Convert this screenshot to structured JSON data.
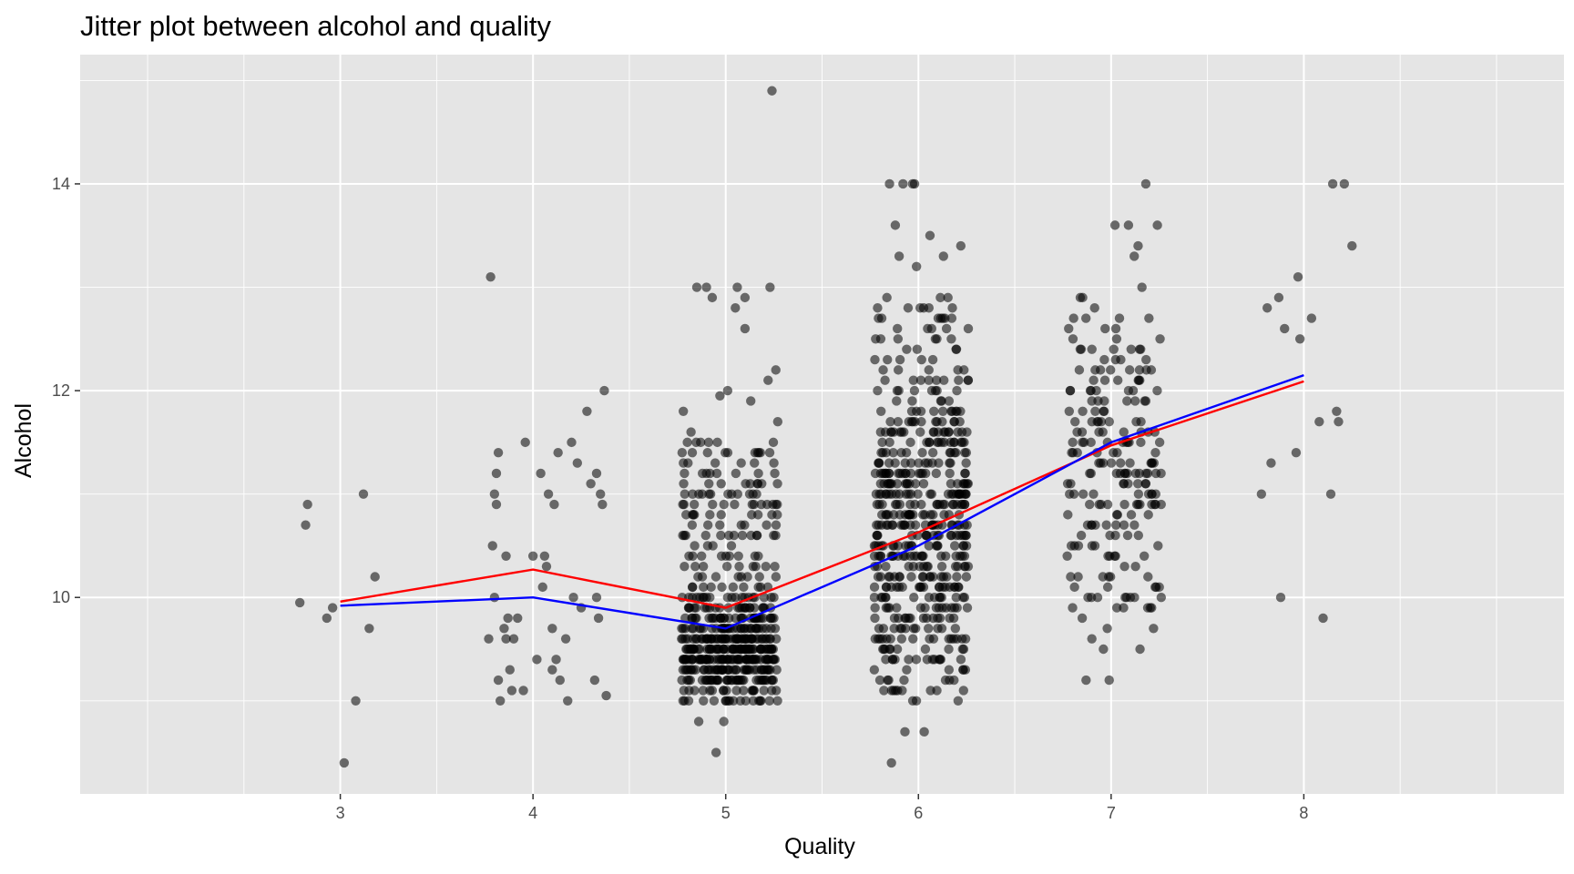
{
  "chart_data": {
    "type": "scatter",
    "title": "Jitter plot between alcohol and quality",
    "xlabel": "Quality",
    "ylabel": "Alcohol",
    "xlim": [
      1.65,
      9.35
    ],
    "ylim": [
      8.1,
      15.25
    ],
    "x_ticks": [
      3,
      4,
      5,
      6,
      7,
      8
    ],
    "y_ticks": [
      10,
      12,
      14
    ],
    "grid": true,
    "legend": "none",
    "point_color": "#000000",
    "point_opacity": 0.55,
    "panel_background": "#e5e5e5",
    "grid_color": "#ffffff",
    "series": [
      {
        "type": "scatter",
        "points": [
          [
            2.79,
            9.95
          ],
          [
            2.82,
            10.7
          ],
          [
            2.83,
            10.9
          ],
          [
            2.93,
            9.8
          ],
          [
            2.96,
            9.9
          ],
          [
            3.02,
            8.4
          ],
          [
            3.08,
            9.0
          ],
          [
            3.12,
            11.0
          ],
          [
            3.15,
            9.7
          ],
          [
            3.18,
            10.2
          ],
          [
            3.77,
            9.6
          ],
          [
            3.78,
            13.1
          ],
          [
            3.79,
            10.5
          ],
          [
            3.8,
            11.0
          ],
          [
            3.8,
            10.0
          ],
          [
            3.81,
            10.9
          ],
          [
            3.81,
            11.2
          ],
          [
            3.82,
            11.4
          ],
          [
            3.82,
            9.2
          ],
          [
            3.83,
            9.0
          ],
          [
            3.85,
            9.7
          ],
          [
            3.86,
            9.6
          ],
          [
            3.86,
            10.4
          ],
          [
            3.87,
            9.8
          ],
          [
            3.88,
            9.3
          ],
          [
            3.89,
            9.1
          ],
          [
            3.9,
            9.6
          ],
          [
            3.92,
            9.8
          ],
          [
            3.95,
            9.1
          ],
          [
            3.96,
            11.5
          ],
          [
            4.0,
            10.4
          ],
          [
            4.02,
            9.4
          ],
          [
            4.04,
            11.2
          ],
          [
            4.05,
            10.1
          ],
          [
            4.06,
            10.4
          ],
          [
            4.07,
            10.3
          ],
          [
            4.08,
            11.0
          ],
          [
            4.1,
            9.7
          ],
          [
            4.1,
            9.3
          ],
          [
            4.11,
            10.9
          ],
          [
            4.12,
            9.4
          ],
          [
            4.13,
            11.4
          ],
          [
            4.14,
            9.2
          ],
          [
            4.17,
            9.6
          ],
          [
            4.18,
            9.0
          ],
          [
            4.2,
            11.5
          ],
          [
            4.21,
            10.0
          ],
          [
            4.23,
            11.3
          ],
          [
            4.25,
            9.9
          ],
          [
            4.28,
            11.8
          ],
          [
            4.3,
            11.1
          ],
          [
            4.32,
            9.2
          ],
          [
            4.33,
            10.0
          ],
          [
            4.33,
            11.2
          ],
          [
            4.34,
            9.8
          ],
          [
            4.35,
            11.0
          ],
          [
            4.36,
            10.9
          ],
          [
            4.37,
            12.0
          ],
          [
            4.38,
            9.05
          ],
          [
            4.78,
            11.8
          ],
          [
            4.82,
            11.6
          ],
          [
            4.85,
            13.0
          ],
          [
            4.86,
            8.8
          ],
          [
            4.87,
            11.5
          ],
          [
            4.9,
            13.0
          ],
          [
            4.93,
            12.9
          ],
          [
            4.95,
            8.5
          ],
          [
            4.97,
            11.95
          ],
          [
            4.99,
            8.8
          ],
          [
            5.01,
            12.0
          ],
          [
            5.05,
            12.8
          ],
          [
            5.06,
            13.0
          ],
          [
            5.1,
            12.6
          ],
          [
            5.1,
            12.9
          ],
          [
            5.13,
            11.9
          ],
          [
            5.18,
            11.4
          ],
          [
            5.22,
            12.1
          ],
          [
            5.23,
            13.0
          ],
          [
            5.24,
            14.9
          ],
          [
            5.26,
            12.2
          ],
          [
            5.27,
            11.7
          ],
          [
            5.84,
            9.2
          ],
          [
            5.85,
            14.0
          ],
          [
            5.86,
            8.4
          ],
          [
            5.88,
            13.6
          ],
          [
            5.9,
            13.3
          ],
          [
            5.92,
            14.0
          ],
          [
            5.93,
            8.7
          ],
          [
            5.97,
            14.0
          ],
          [
            5.98,
            14.0
          ],
          [
            5.99,
            13.2
          ],
          [
            6.03,
            8.7
          ],
          [
            6.06,
            13.5
          ],
          [
            6.13,
            13.3
          ],
          [
            6.22,
            13.4
          ],
          [
            6.79,
            10.2
          ],
          [
            6.8,
            9.9
          ],
          [
            6.81,
            10.1
          ],
          [
            6.84,
            12.9
          ],
          [
            6.85,
            9.8
          ],
          [
            6.87,
            9.2
          ],
          [
            6.88,
            10.0
          ],
          [
            6.9,
            9.6
          ],
          [
            6.93,
            10.0
          ],
          [
            6.96,
            9.5
          ],
          [
            6.98,
            9.7
          ],
          [
            6.99,
            9.2
          ],
          [
            7.02,
            13.6
          ],
          [
            7.08,
            10.0
          ],
          [
            7.09,
            13.6
          ],
          [
            7.1,
            10.0
          ],
          [
            7.12,
            13.3
          ],
          [
            7.14,
            13.4
          ],
          [
            7.15,
            9.5
          ],
          [
            7.16,
            13.0
          ],
          [
            7.18,
            14.0
          ],
          [
            7.19,
            9.9
          ],
          [
            7.21,
            9.9
          ],
          [
            7.22,
            9.7
          ],
          [
            7.24,
            13.6
          ],
          [
            7.26,
            10.0
          ],
          [
            7.78,
            11.0
          ],
          [
            7.81,
            12.8
          ],
          [
            7.83,
            11.3
          ],
          [
            7.87,
            12.9
          ],
          [
            7.88,
            10.0
          ],
          [
            7.9,
            12.6
          ],
          [
            7.96,
            11.4
          ],
          [
            7.97,
            13.1
          ],
          [
            7.98,
            12.5
          ],
          [
            8.04,
            12.7
          ],
          [
            8.08,
            11.7
          ],
          [
            8.1,
            9.8
          ],
          [
            8.14,
            11.0
          ],
          [
            8.15,
            14.0
          ],
          [
            8.17,
            11.8
          ],
          [
            8.18,
            11.7
          ],
          [
            8.21,
            14.0
          ],
          [
            8.25,
            13.4
          ]
        ],
        "dense_bands": [
          {
            "x": [
              4.77,
              5.27
            ],
            "y": [
              9.0,
              11.5
            ],
            "n": 540,
            "mode": [
              9.5,
              0.33
            ]
          },
          {
            "x": [
              5.77,
              6.26
            ],
            "y": [
              9.0,
              12.9
            ],
            "n": 520,
            "mode": [
              10.6,
              1.0
            ]
          },
          {
            "x": [
              6.77,
              7.26
            ],
            "y": [
              9.9,
              12.9
            ],
            "n": 190,
            "mode": [
              11.3,
              0.8
            ]
          }
        ]
      },
      {
        "type": "line",
        "color": "#ff0000",
        "x": [
          3,
          4,
          5,
          6,
          7,
          8
        ],
        "y": [
          9.96,
          10.27,
          9.9,
          10.63,
          11.47,
          12.09
        ]
      },
      {
        "type": "line",
        "color": "#0000ff",
        "x": [
          3,
          4,
          5,
          6,
          7,
          8
        ],
        "y": [
          9.92,
          10.0,
          9.7,
          10.5,
          11.5,
          12.15
        ]
      }
    ]
  }
}
